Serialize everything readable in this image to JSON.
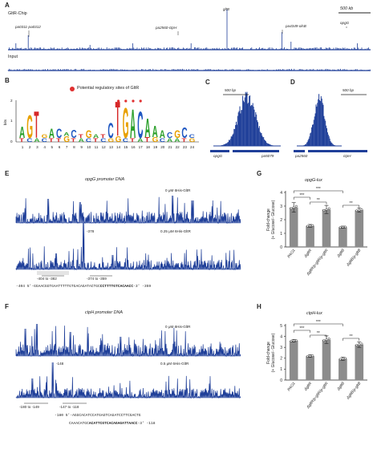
{
  "panels": {
    "A": {
      "label": "A",
      "track1": "GltR-Chip",
      "track2": "Input",
      "scalebar": "500 kb",
      "peaks": [
        "gltB",
        "pa0311-pa0312",
        "pa2560-ctpH",
        "pa4349-olsB",
        "opgG"
      ]
    },
    "B": {
      "label": "B",
      "legend": "Potential regulatory sites of GltR",
      "ylabel": "bits",
      "ticks": [
        "0",
        "1",
        "2"
      ],
      "positions": [
        "1",
        "2",
        "3",
        "4",
        "5",
        "6",
        "7",
        "8",
        "9",
        "10",
        "11",
        "12",
        "13",
        "14",
        "15",
        "16",
        "17",
        "18",
        "19",
        "20",
        "21",
        "22",
        "23",
        "24"
      ]
    },
    "C": {
      "label": "C",
      "scalebar": "500 bp",
      "gene_left": "opgG",
      "gene_right": "pa5079"
    },
    "D": {
      "label": "D",
      "scalebar": "500 bp",
      "gene_left": "pa2560",
      "gene_right": "ctpH"
    },
    "E": {
      "label": "E",
      "title": "opgG promoter DNA",
      "cond1": "0 μM 6His-GltR",
      "cond2": "0.25 μM 6His-GltR",
      "peak": "-378",
      "range1": "-374 to -359",
      "seq_start": "-404 5'-",
      "seq_plain": "GGAACGGTGAATTTTTGTGACAGATACTGC",
      "seq_bold": "CCTTTTGTCACAACC",
      "seq_end": "-3' -359",
      "left_range": "-404 to -382"
    },
    "F": {
      "label": "F",
      "title": "ctpH promoter DNA",
      "cond1": "0 μM 6His-GltR",
      "cond2": "0.5 μM 6His-GltR",
      "peak": "-148",
      "range1": "-180 to -149",
      "range2": "-147 to -118",
      "seq1_start": "-180 5'-",
      "seq1": "AGGCACATCCATGAGTCAGATCCTTCGACTG",
      "seq2_plain": "CAAACATGC",
      "seq2_bold": "ACATTCGTCACAGAGATTAACC",
      "seq2_end": "-3' -118"
    },
    "G": {
      "label": "G",
      "title": "opgG-lux",
      "ylabel": "Fold-change\n(+ Glucose/- Glucose)",
      "yticks": [
        "0",
        "1",
        "2",
        "3",
        "4"
      ],
      "sig": [
        "***",
        "***",
        "**",
        "**"
      ],
      "categories": [
        "PAO1",
        "ΔgltR",
        "ΔgltR/p-gltR/p-gltR",
        "ΔgltB",
        "ΔgltB/p-gltB"
      ]
    },
    "H": {
      "label": "H",
      "title": "ctpH-lux",
      "ylabel": "Fold-change\n(+ Glucose/- Glucose)",
      "yticks": [
        "0",
        "1",
        "2",
        "3",
        "4",
        "5"
      ],
      "sig": [
        "***",
        "***",
        "**",
        "**"
      ],
      "categories": [
        "PAO1",
        "ΔgltR",
        "ΔgltR/p-gltR/p-gltR",
        "ΔgltB",
        "ΔgltB/p-gltB"
      ]
    }
  },
  "chart_data": [
    {
      "type": "bar",
      "title": "opgG-lux",
      "categories": [
        "PAO1",
        "ΔgltR",
        "ΔgltR/p-gltR/p-gltR",
        "ΔgltB",
        "ΔgltB/p-gltB"
      ],
      "values": [
        2.9,
        1.55,
        2.75,
        1.45,
        2.7
      ],
      "errors": [
        0.35,
        0.1,
        0.3,
        0.08,
        0.15
      ],
      "ylim": [
        0,
        4
      ],
      "ylabel": "Fold-change (+ Glucose/- Glucose)"
    },
    {
      "type": "bar",
      "title": "ctpH-lux",
      "categories": [
        "PAO1",
        "ΔgltR",
        "ΔgltR/p-gltR/p-gltR",
        "ΔgltB",
        "ΔgltB/p-gltB"
      ],
      "values": [
        3.6,
        2.2,
        3.7,
        1.95,
        3.25
      ],
      "errors": [
        0.12,
        0.12,
        0.35,
        0.15,
        0.25
      ],
      "ylim": [
        0,
        5
      ],
      "ylabel": "Fold-change (+ Glucose/- Glucose)"
    }
  ],
  "colors": {
    "trace": "#1f3f99",
    "bar": "#8c8c8c",
    "dot_red": "#e03030"
  }
}
